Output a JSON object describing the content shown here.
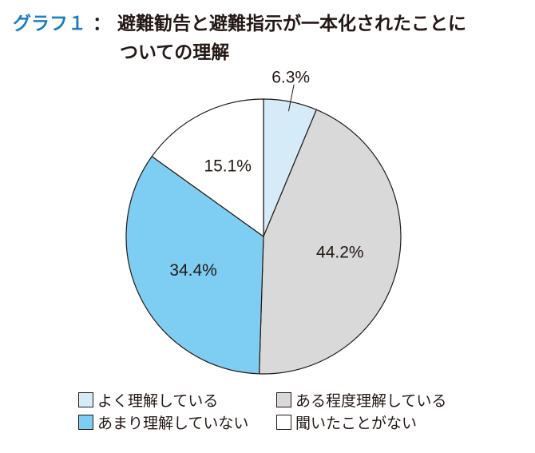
{
  "title": {
    "label": "グラフ１",
    "separator": "：",
    "line1": "避難勧告と避難指示が一本化されたことに",
    "line2": "ついての理解"
  },
  "colors": {
    "yoku": "#d5ecf8",
    "aru": "#d9d9d9",
    "amari": "#7ecef3",
    "kiita": "#ffffff",
    "stroke": "#231815"
  },
  "chart_data": {
    "type": "pie",
    "start": "12 o'clock",
    "direction": "clockwise",
    "slices": [
      {
        "label": "よく理解している",
        "value": 6.3,
        "value_label": "6.3%",
        "color": "#d5ecf8"
      },
      {
        "label": "ある程度理解している",
        "value": 44.2,
        "value_label": "44.2%",
        "color": "#d9d9d9"
      },
      {
        "label": "あまり理解していない",
        "value": 34.4,
        "value_label": "34.4%",
        "color": "#7ecef3"
      },
      {
        "label": "聞いたことがない",
        "value": 15.1,
        "value_label": "15.1%",
        "color": "#ffffff"
      }
    ],
    "legend": [
      "よく理解している",
      "ある程度理解している",
      "あまり理解していない",
      "聞いたことがない"
    ],
    "legend_placement": "bottom"
  }
}
